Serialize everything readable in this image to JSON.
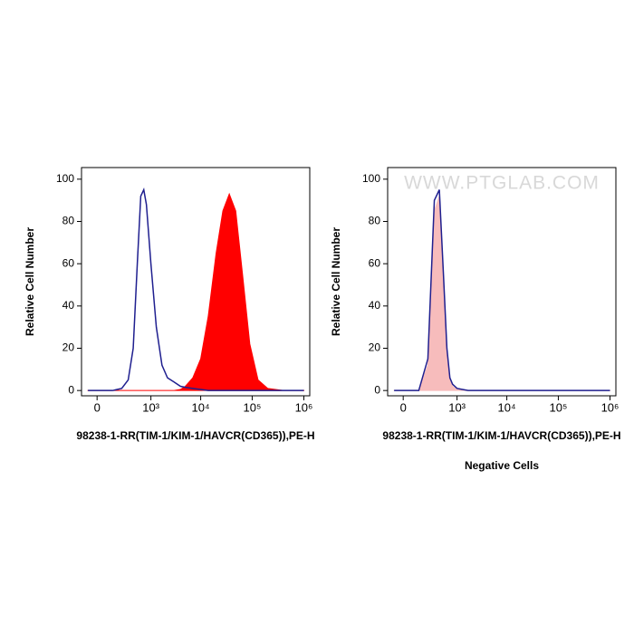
{
  "chart_data": [
    {
      "type": "histogram-overlay",
      "xlabel": "98238-1-RR(TIM-1/KIM-1/HAVCR(CD365)),PE-H",
      "ylabel": "Relative Cell Number",
      "xscale": "biexponential",
      "xlim": [
        -100,
        1300000
      ],
      "ylim": [
        -2.5,
        105.5
      ],
      "xticks": [
        0,
        {
          "value": 1000,
          "label": "10³"
        },
        {
          "value": 10000,
          "label": "10⁴"
        },
        {
          "value": 100000,
          "label": "10⁵"
        },
        {
          "value": 1000000,
          "label": "10⁶"
        }
      ],
      "yticks": [
        0,
        20,
        40,
        60,
        80,
        100
      ],
      "x": [
        -50,
        0,
        100,
        200,
        300,
        400,
        500,
        600,
        700,
        800,
        1000,
        1300,
        1700,
        2200,
        3000,
        4000,
        5000,
        7000,
        10000,
        14000,
        20000,
        27000,
        36000,
        48000,
        65000,
        90000,
        130000,
        200000,
        400000,
        1000000
      ],
      "series": [
        {
          "color": "#ff0000",
          "fill": true,
          "values": [
            0,
            0,
            0,
            0,
            0,
            0,
            0,
            0,
            0,
            0,
            0,
            0,
            0,
            0,
            0,
            0.5,
            2,
            6,
            15,
            35,
            65,
            85,
            93,
            85,
            55,
            22,
            5,
            1,
            0,
            0
          ]
        },
        {
          "color": "#1f1f8f",
          "fill": false,
          "values": [
            0,
            0,
            0,
            1,
            5,
            20,
            60,
            92,
            95,
            88,
            60,
            30,
            12,
            6,
            4,
            2,
            1.5,
            1,
            0.5,
            0,
            0,
            0,
            0,
            0,
            0,
            0,
            0,
            0,
            0,
            0
          ]
        }
      ]
    },
    {
      "type": "histogram-overlay",
      "title": "Negative Cells",
      "watermark": "WWW.PTGLAB.COM",
      "xlabel": "98238-1-RR(TIM-1/KIM-1/HAVCR(CD365)),PE-H",
      "ylabel": "Relative Cell Number",
      "xscale": "biexponential",
      "xlim": [
        -100,
        1300000
      ],
      "ylim": [
        -2.5,
        105.5
      ],
      "xticks": [
        0,
        {
          "value": 1000,
          "label": "10³"
        },
        {
          "value": 10000,
          "label": "10⁴"
        },
        {
          "value": 100000,
          "label": "10⁵"
        },
        {
          "value": 1000000,
          "label": "10⁶"
        }
      ],
      "yticks": [
        0,
        20,
        40,
        60,
        80,
        100
      ],
      "x": [
        -50,
        0,
        100,
        200,
        300,
        400,
        500,
        600,
        700,
        800,
        1000,
        1300,
        1700,
        2200,
        3000,
        4000,
        5000,
        7000,
        10000,
        14000,
        20000,
        27000,
        36000,
        48000,
        65000,
        90000,
        130000,
        200000,
        400000,
        1000000
      ],
      "series": [
        {
          "color": "#f7bcbc",
          "fill": true,
          "values": [
            0,
            0,
            0,
            12,
            85,
            92,
            50,
            18,
            5,
            2,
            0.5,
            0,
            0,
            0,
            0,
            0,
            0,
            0,
            0,
            0,
            0,
            0,
            0,
            0,
            0,
            0,
            0,
            0,
            0,
            0
          ]
        },
        {
          "color": "#1f1f8f",
          "fill": false,
          "values": [
            0,
            0,
            0,
            15,
            90,
            95,
            55,
            20,
            6,
            3,
            1,
            0.5,
            0,
            0,
            0,
            0,
            0,
            0,
            0,
            0,
            0,
            0,
            0,
            0,
            0,
            0,
            0,
            0,
            0,
            0
          ]
        }
      ]
    }
  ]
}
